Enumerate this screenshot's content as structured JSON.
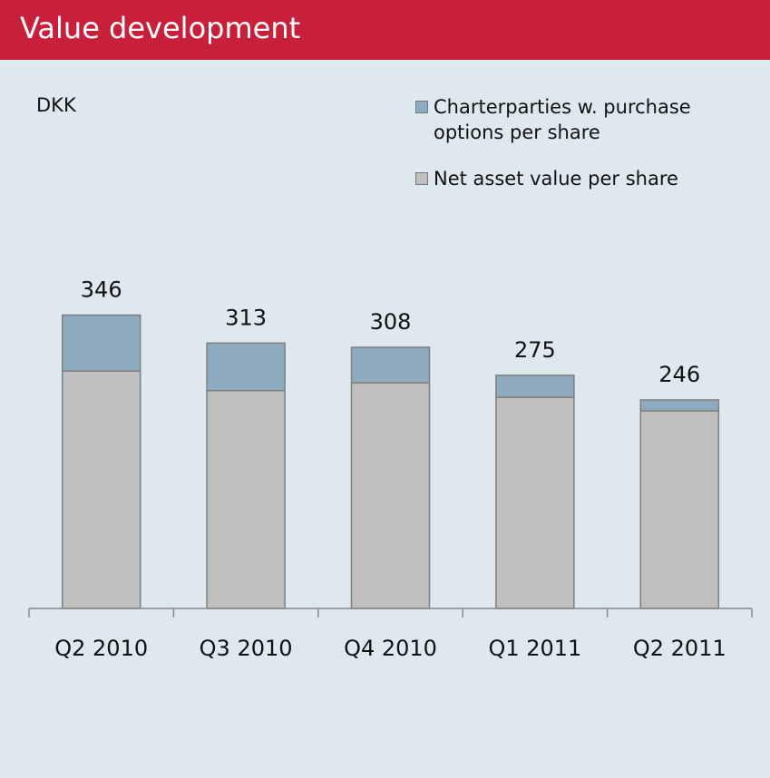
{
  "chart_data": {
    "type": "stacked_bar",
    "title": "Value development",
    "y_label": "DKK",
    "categories": [
      "Q2 2010",
      "Q3 2010",
      "Q4 2010",
      "Q1 2011",
      "Q2 2011"
    ],
    "series": [
      {
        "name": "Net asset value per share",
        "color": "#bfbfbf",
        "values": [
          280,
          257,
          266,
          249,
          233
        ]
      },
      {
        "name": "Charterparties w. purchase options per share",
        "color": "#8eaabf",
        "values": [
          66,
          56,
          42,
          26,
          13
        ]
      }
    ],
    "totals": [
      346,
      313,
      308,
      275,
      246
    ],
    "ylim": [
      0,
      400
    ],
    "legend": "top-right"
  }
}
